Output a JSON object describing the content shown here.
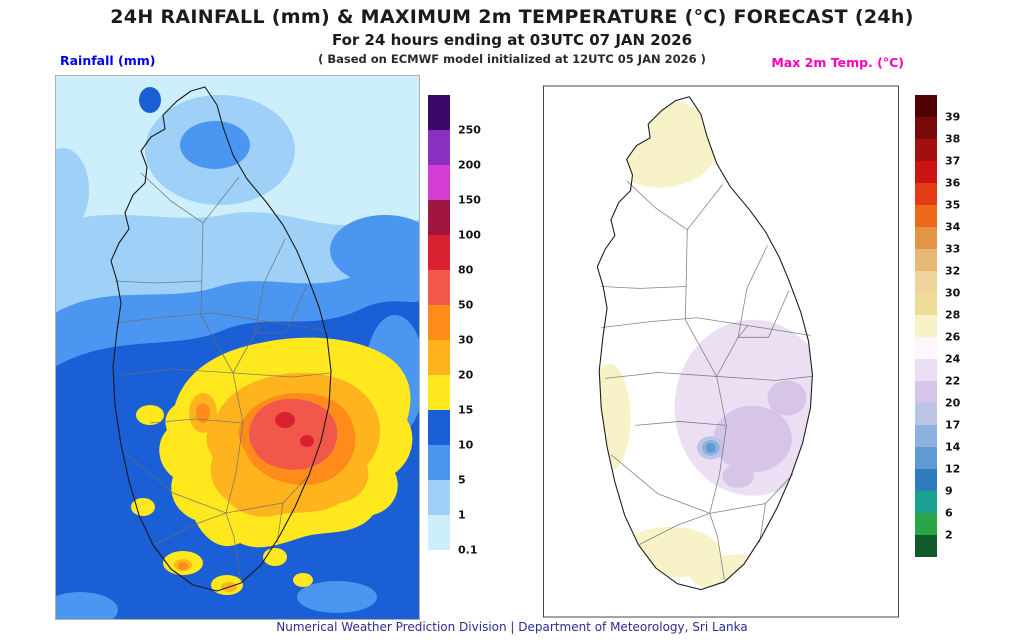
{
  "header": {
    "title": "24H RAINFALL (mm) & MAXIMUM 2m TEMPERATURE (°C) FORECAST (24h)",
    "subtitle": "For 24 hours ending at 03UTC 07 JAN 2026",
    "model_info": "( Based on ECMWF model initialized at 12UTC 05 JAN 2026 )"
  },
  "rainfall_panel": {
    "label": "Rainfall (mm)",
    "label_color": "#0000ee",
    "legend": {
      "values": [
        "250",
        "200",
        "150",
        "100",
        "80",
        "50",
        "30",
        "20",
        "15",
        "10",
        "5",
        "1",
        "0.1"
      ],
      "colors": [
        "#38096b",
        "#8b2fc0",
        "#d43cd4",
        "#a01540",
        "#da2131",
        "#f1574a",
        "#ff8c1a",
        "#ffb41e",
        "#ffe81e",
        "#1a5fd6",
        "#4b96f0",
        "#9fd0f7",
        "#cdeefb"
      ]
    }
  },
  "temperature_panel": {
    "label": "Max 2m Temp. (°C)",
    "label_color": "#ff00bb",
    "legend": {
      "values": [
        "39",
        "38",
        "37",
        "36",
        "35",
        "34",
        "33",
        "32",
        "30",
        "28",
        "26",
        "24",
        "22",
        "20",
        "17",
        "14",
        "12",
        "9",
        "6",
        "2"
      ],
      "colors": [
        "#500005",
        "#780a0a",
        "#a30f0f",
        "#cd1414",
        "#e13c14",
        "#eb6919",
        "#e19646",
        "#e6b978",
        "#f0d29b",
        "#ecdc96",
        "#f8f2c8",
        "#fdf6fa",
        "#eddff3",
        "#d7c5e9",
        "#bcc5e6",
        "#8cb1de",
        "#5f9ad2",
        "#2d7dbe",
        "#1aa091",
        "#2aa546",
        "#0f5a28"
      ]
    }
  },
  "footer": {
    "text": "Numerical Weather Prediction Division | Department of Meteorology, Sri Lanka"
  }
}
